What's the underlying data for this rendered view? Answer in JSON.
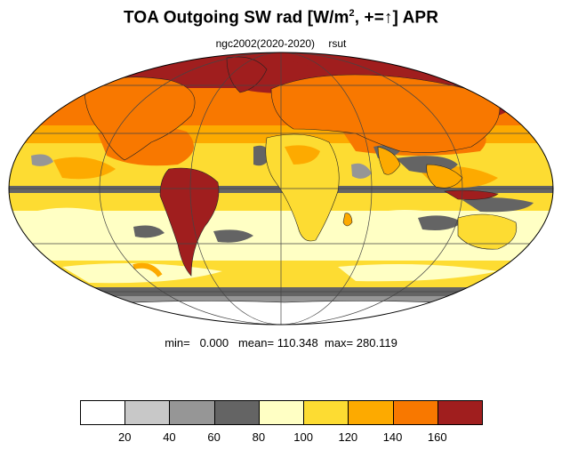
{
  "title": {
    "main": "TOA Outgoing SW rad [W/m",
    "sup": "2",
    "tail": ", +=↑] APR"
  },
  "subtitle": {
    "run": "ngc2002(2020-2020)",
    "var": "rsut"
  },
  "stats": {
    "min_label": "min=",
    "min": "0.000",
    "mean_label": "mean=",
    "mean": "110.348",
    "max_label": "max=",
    "max": "280.119"
  },
  "colorbar": {
    "colors": [
      "#ffffff",
      "#c8c8c8",
      "#969696",
      "#646464",
      "#ffffc4",
      "#fddc32",
      "#fdaa00",
      "#f87800",
      "#a01e1e"
    ],
    "labels": [
      "20",
      "40",
      "60",
      "80",
      "100",
      "120",
      "140",
      "160"
    ]
  },
  "projection": "Mollweide",
  "colors": {
    "coast": "#222222",
    "grid": "#444444",
    "ocean_mid": "#ffffc4",
    "ocean_high": "#fddc32"
  }
}
